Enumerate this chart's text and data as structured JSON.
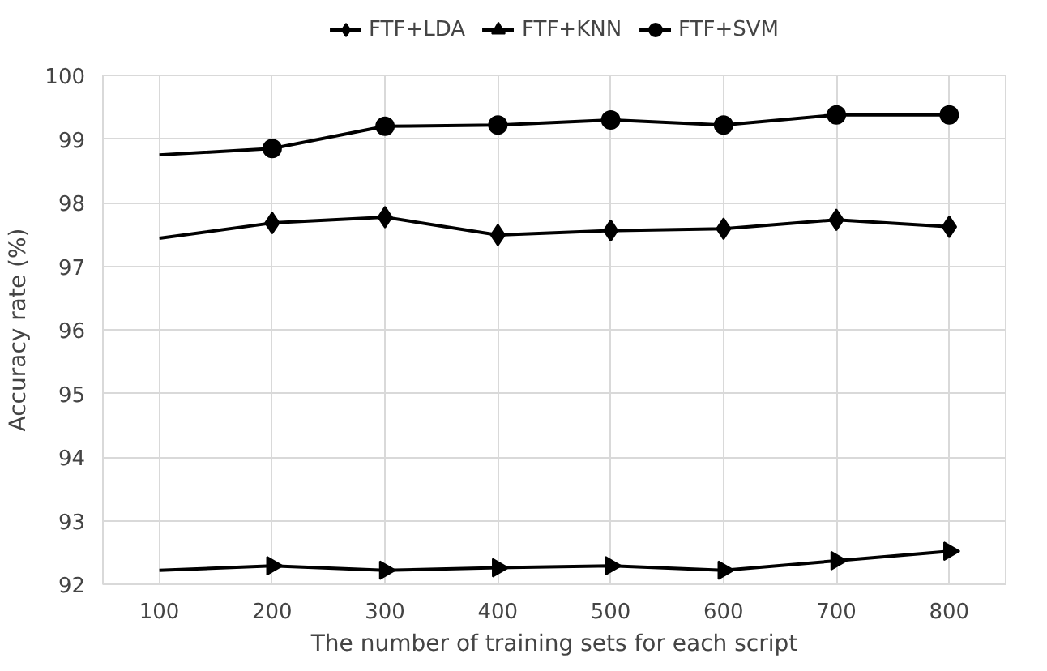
{
  "chart_data": {
    "type": "line",
    "xlabel": "The number of training sets for each script",
    "ylabel": "Accuracy rate (%)",
    "x": [
      100,
      200,
      300,
      400,
      500,
      600,
      700,
      800
    ],
    "series": [
      {
        "name": "FTF+LDA",
        "color": "#000000",
        "marker": "diamond",
        "values": [
          97.44,
          97.68,
          97.77,
          97.49,
          97.56,
          97.59,
          97.73,
          97.62
        ]
      },
      {
        "name": "FTF+KNN",
        "color": "#000000",
        "marker": "triangle",
        "values": [
          92.22,
          92.29,
          92.22,
          92.26,
          92.29,
          92.22,
          92.37,
          92.52
        ]
      },
      {
        "name": "FTF+SVM",
        "color": "#000000",
        "marker": "circle",
        "values": [
          98.75,
          98.85,
          99.2,
          99.22,
          99.3,
          99.22,
          99.38,
          99.38
        ]
      }
    ],
    "xlim": [
      50,
      850
    ],
    "xticks": [
      100,
      200,
      300,
      400,
      500,
      600,
      700,
      800
    ],
    "ylim": [
      92,
      100
    ],
    "yticks": [
      92,
      93,
      94,
      95,
      96,
      97,
      98,
      99,
      100
    ],
    "grid": true,
    "legend": "top",
    "line_style": "solid"
  }
}
